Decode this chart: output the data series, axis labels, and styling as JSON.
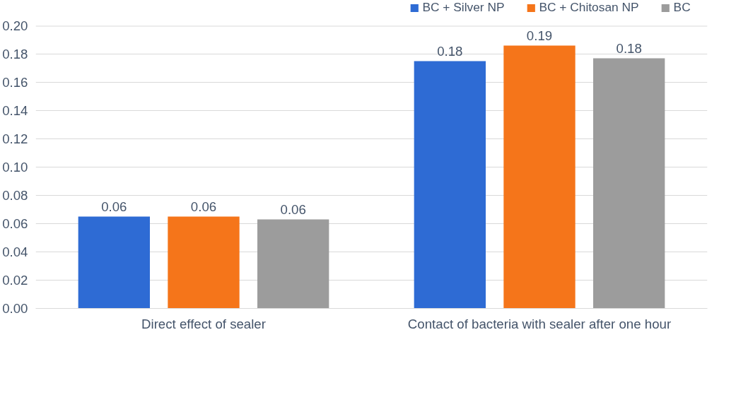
{
  "chart_data": {
    "type": "bar",
    "categories": [
      "Direct effect of sealer",
      "Contact of bacteria with sealer after one hour"
    ],
    "series": [
      {
        "name": "BC + Silver NP",
        "color": "#2e6bd4",
        "values": [
          0.065,
          0.175
        ],
        "value_labels": [
          "0.06",
          "0.18"
        ]
      },
      {
        "name": "BC + Chitosan NP",
        "color": "#f5751a",
        "values": [
          0.065,
          0.186
        ],
        "value_labels": [
          "0.06",
          "0.19"
        ]
      },
      {
        "name": "BC",
        "color": "#9c9c9c",
        "values": [
          0.063,
          0.177
        ],
        "value_labels": [
          "0.06",
          "0.18"
        ]
      }
    ],
    "ylim": [
      0,
      0.2
    ],
    "yticks": [
      "0.00",
      "0.02",
      "0.04",
      "0.06",
      "0.08",
      "0.10",
      "0.12",
      "0.14",
      "0.16",
      "0.18",
      "0.20"
    ],
    "grid": "y",
    "legend": "top right"
  }
}
